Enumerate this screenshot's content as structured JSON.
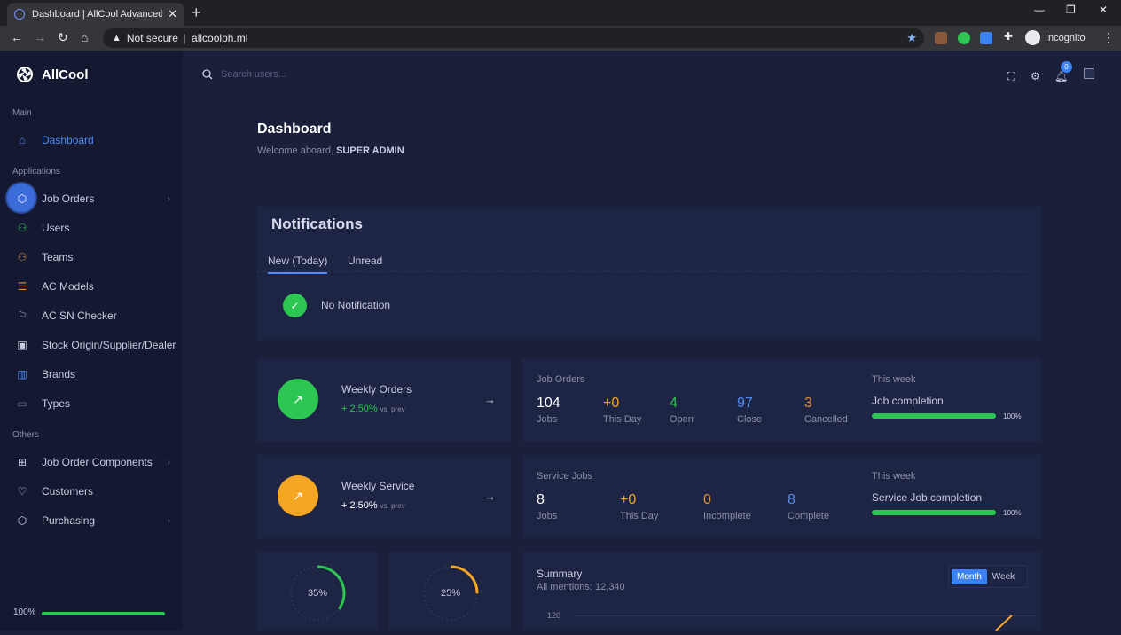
{
  "browser": {
    "tab_title": "Dashboard | AllCool Advanced C",
    "url_warning": "Not secure",
    "url": "allcoolph.ml",
    "incognito": "Incognito"
  },
  "app": {
    "name": "AllCool",
    "search_placeholder": "Search users...",
    "notif_count": "0"
  },
  "sidebar": {
    "section_main": "Main",
    "section_applications": "Applications",
    "section_others": "Others",
    "items": [
      {
        "label": "Dashboard",
        "icon": "home-icon"
      },
      {
        "label": "Job Orders",
        "icon": "box-icon"
      },
      {
        "label": "Users",
        "icon": "users-icon"
      },
      {
        "label": "Teams",
        "icon": "team-icon"
      },
      {
        "label": "AC Models",
        "icon": "list-icon"
      },
      {
        "label": "AC SN Checker",
        "icon": "flag-icon"
      },
      {
        "label": "Stock Origin/Supplier/Dealer",
        "icon": "store-icon"
      },
      {
        "label": "Brands",
        "icon": "columns-icon"
      },
      {
        "label": "Types",
        "icon": "folder-icon"
      },
      {
        "label": "Job Order Components",
        "icon": "grid-icon"
      },
      {
        "label": "Customers",
        "icon": "heart-icon"
      },
      {
        "label": "Purchasing",
        "icon": "package-icon"
      }
    ],
    "progress": "100%",
    "progress_value": 1.0
  },
  "header": {
    "title": "Dashboard",
    "welcome_prefix": "Welcome aboard, ",
    "welcome_user": "SUPER ADMIN"
  },
  "notifications": {
    "title": "Notifications",
    "tabs": [
      "New (Today)",
      "Unread"
    ],
    "empty": "No Notification"
  },
  "weekly_orders": {
    "title": "Weekly Orders",
    "change": "+ 2.50%",
    "vs": "vs. prev"
  },
  "weekly_service": {
    "title": "Weekly Service",
    "change": "+ 2.50%",
    "vs": "vs. prev"
  },
  "job_orders": {
    "heading": "Job Orders",
    "stats": [
      {
        "value": "104",
        "label": "Jobs",
        "color": "#ffffff"
      },
      {
        "value": "+0",
        "label": "This Day",
        "color": "#f5a623"
      },
      {
        "value": "4",
        "label": "Open",
        "color": "#2dc653"
      },
      {
        "value": "97",
        "label": "Close",
        "color": "#4f8df5"
      },
      {
        "value": "3",
        "label": "Cancelled",
        "color": "#e0903a"
      }
    ],
    "week_label": "This week",
    "completion_label": "Job completion",
    "completion_pct": "100%",
    "completion_value": 1.0
  },
  "service_jobs": {
    "heading": "Service Jobs",
    "stats": [
      {
        "value": "8",
        "label": "Jobs",
        "color": "#ffffff"
      },
      {
        "value": "+0",
        "label": "This Day",
        "color": "#f5a623"
      },
      {
        "value": "0",
        "label": "Incomplete",
        "color": "#e0903a"
      },
      {
        "value": "8",
        "label": "Complete",
        "color": "#4f8df5"
      }
    ],
    "week_label": "This week",
    "completion_label": "Service Job completion",
    "completion_pct": "100%",
    "completion_value": 1.0
  },
  "donuts": [
    {
      "label": "35%",
      "value": 0.35,
      "color": "#2dc653"
    },
    {
      "label": "25%",
      "value": 0.25,
      "color": "#f5a623"
    }
  ],
  "summary": {
    "title": "Summary",
    "subtitle": "All mentions: 12,340",
    "toggle": [
      "Month",
      "Week"
    ],
    "ytick": "120"
  },
  "colors": {
    "accent": "#3b82f6",
    "success": "#2dc653",
    "warning": "#f5a623"
  }
}
